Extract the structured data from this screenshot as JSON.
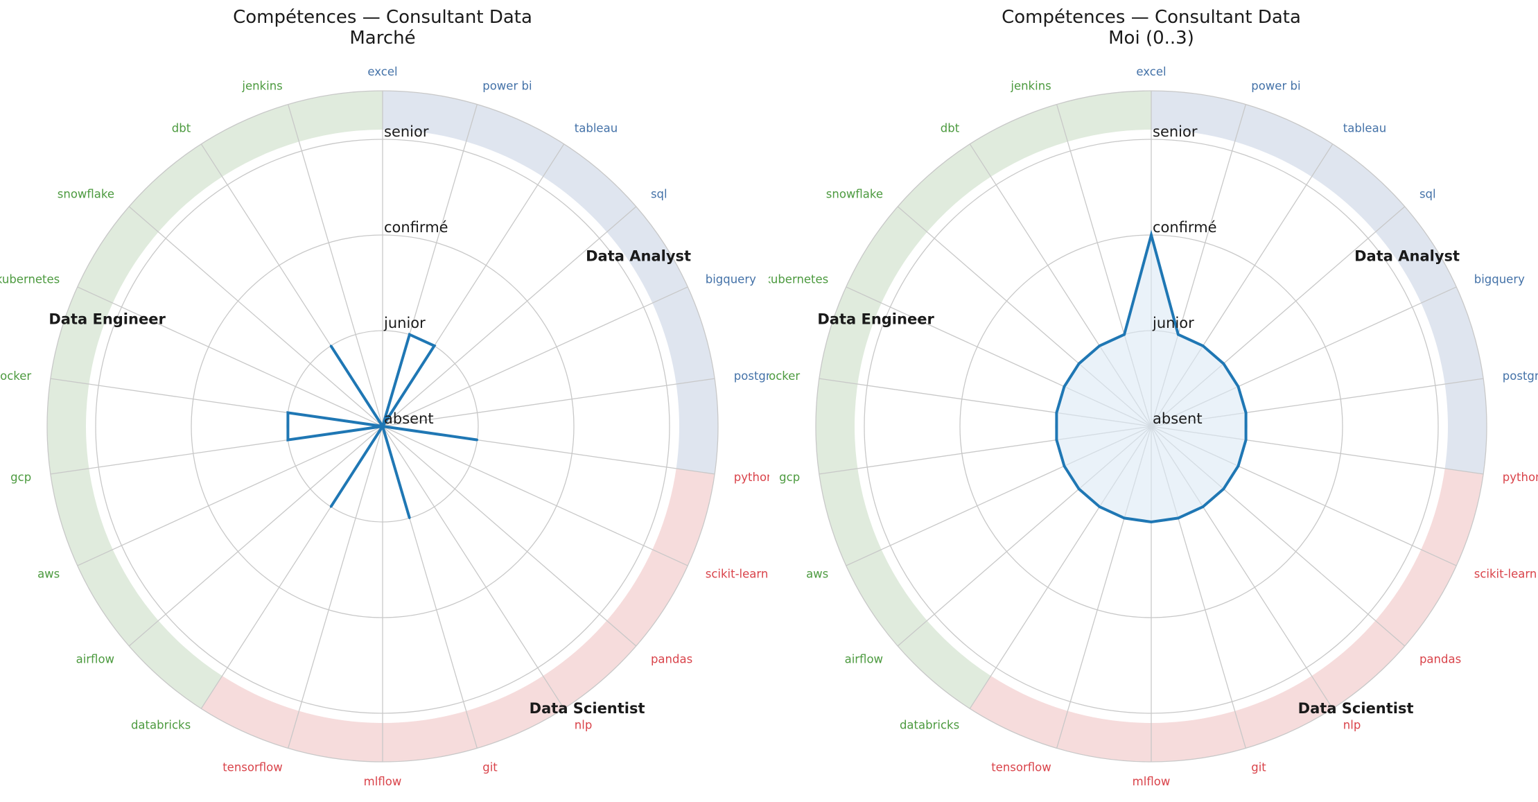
{
  "colors": {
    "analyst": "#4472a8",
    "scientist": "#d9434a",
    "engineer": "#4c9a3f",
    "analyst_band": "#dfe5ef",
    "scientist_band": "#f6dcdc",
    "engineer_band": "#e0ebdd",
    "series": "#1f77b4",
    "fill": "#dce9f5",
    "grid": "#c8c8c8"
  },
  "chart_data": [
    {
      "type": "radar",
      "title": "Compétences — Consultant Data",
      "subtitle": "Marché",
      "rlim": [
        0,
        3
      ],
      "r_ticks": [
        {
          "value": 0,
          "label": "absent"
        },
        {
          "value": 1,
          "label": "junior"
        },
        {
          "value": 2,
          "label": "confirmé"
        },
        {
          "value": 3,
          "label": "senior"
        }
      ],
      "categories": [
        "excel",
        "power bi",
        "tableau",
        "sql",
        "bigquery",
        "postgres",
        "python",
        "scikit-learn",
        "pandas",
        "nlp",
        "git",
        "mlflow",
        "tensorflow",
        "databricks",
        "airflow",
        "aws",
        "gcp",
        "docker",
        "kubernetes",
        "snowflake",
        "dbt",
        "jenkins"
      ],
      "category_groups": [
        "analyst",
        "analyst",
        "analyst",
        "analyst",
        "analyst",
        "analyst",
        "scientist",
        "scientist",
        "scientist",
        "scientist",
        "scientist",
        "scientist",
        "scientist",
        "engineer",
        "engineer",
        "engineer",
        "engineer",
        "engineer",
        "engineer",
        "engineer",
        "engineer",
        "engineer"
      ],
      "groups": [
        {
          "key": "analyst",
          "name": "Data Analyst"
        },
        {
          "key": "scientist",
          "name": "Data Scientist"
        },
        {
          "key": "engineer",
          "name": "Data Engineer"
        }
      ],
      "values": [
        0,
        1,
        1,
        0,
        0,
        0,
        1,
        0,
        0,
        0,
        1,
        0,
        0,
        1,
        0,
        0,
        1,
        1,
        0,
        0,
        1,
        0
      ],
      "filled": false
    },
    {
      "type": "radar",
      "title": "Compétences — Consultant Data",
      "subtitle": "Moi (0..3)",
      "rlim": [
        0,
        3
      ],
      "r_ticks": [
        {
          "value": 0,
          "label": "absent"
        },
        {
          "value": 1,
          "label": "junior"
        },
        {
          "value": 2,
          "label": "confirmé"
        },
        {
          "value": 3,
          "label": "senior"
        }
      ],
      "categories": [
        "excel",
        "power bi",
        "tableau",
        "sql",
        "bigquery",
        "postgres",
        "python",
        "scikit-learn",
        "pandas",
        "nlp",
        "git",
        "mlflow",
        "tensorflow",
        "databricks",
        "airflow",
        "aws",
        "gcp",
        "docker",
        "kubernetes",
        "snowflake",
        "dbt",
        "jenkins"
      ],
      "category_groups": [
        "analyst",
        "analyst",
        "analyst",
        "analyst",
        "analyst",
        "analyst",
        "scientist",
        "scientist",
        "scientist",
        "scientist",
        "scientist",
        "scientist",
        "scientist",
        "engineer",
        "engineer",
        "engineer",
        "engineer",
        "engineer",
        "engineer",
        "engineer",
        "engineer",
        "engineer"
      ],
      "groups": [
        {
          "key": "analyst",
          "name": "Data Analyst"
        },
        {
          "key": "scientist",
          "name": "Data Scientist"
        },
        {
          "key": "engineer",
          "name": "Data Engineer"
        }
      ],
      "values": [
        2,
        1,
        1,
        1,
        1,
        1,
        1,
        1,
        1,
        1,
        1,
        1,
        1,
        1,
        1,
        1,
        1,
        1,
        1,
        1,
        1,
        1
      ],
      "filled": true
    }
  ]
}
